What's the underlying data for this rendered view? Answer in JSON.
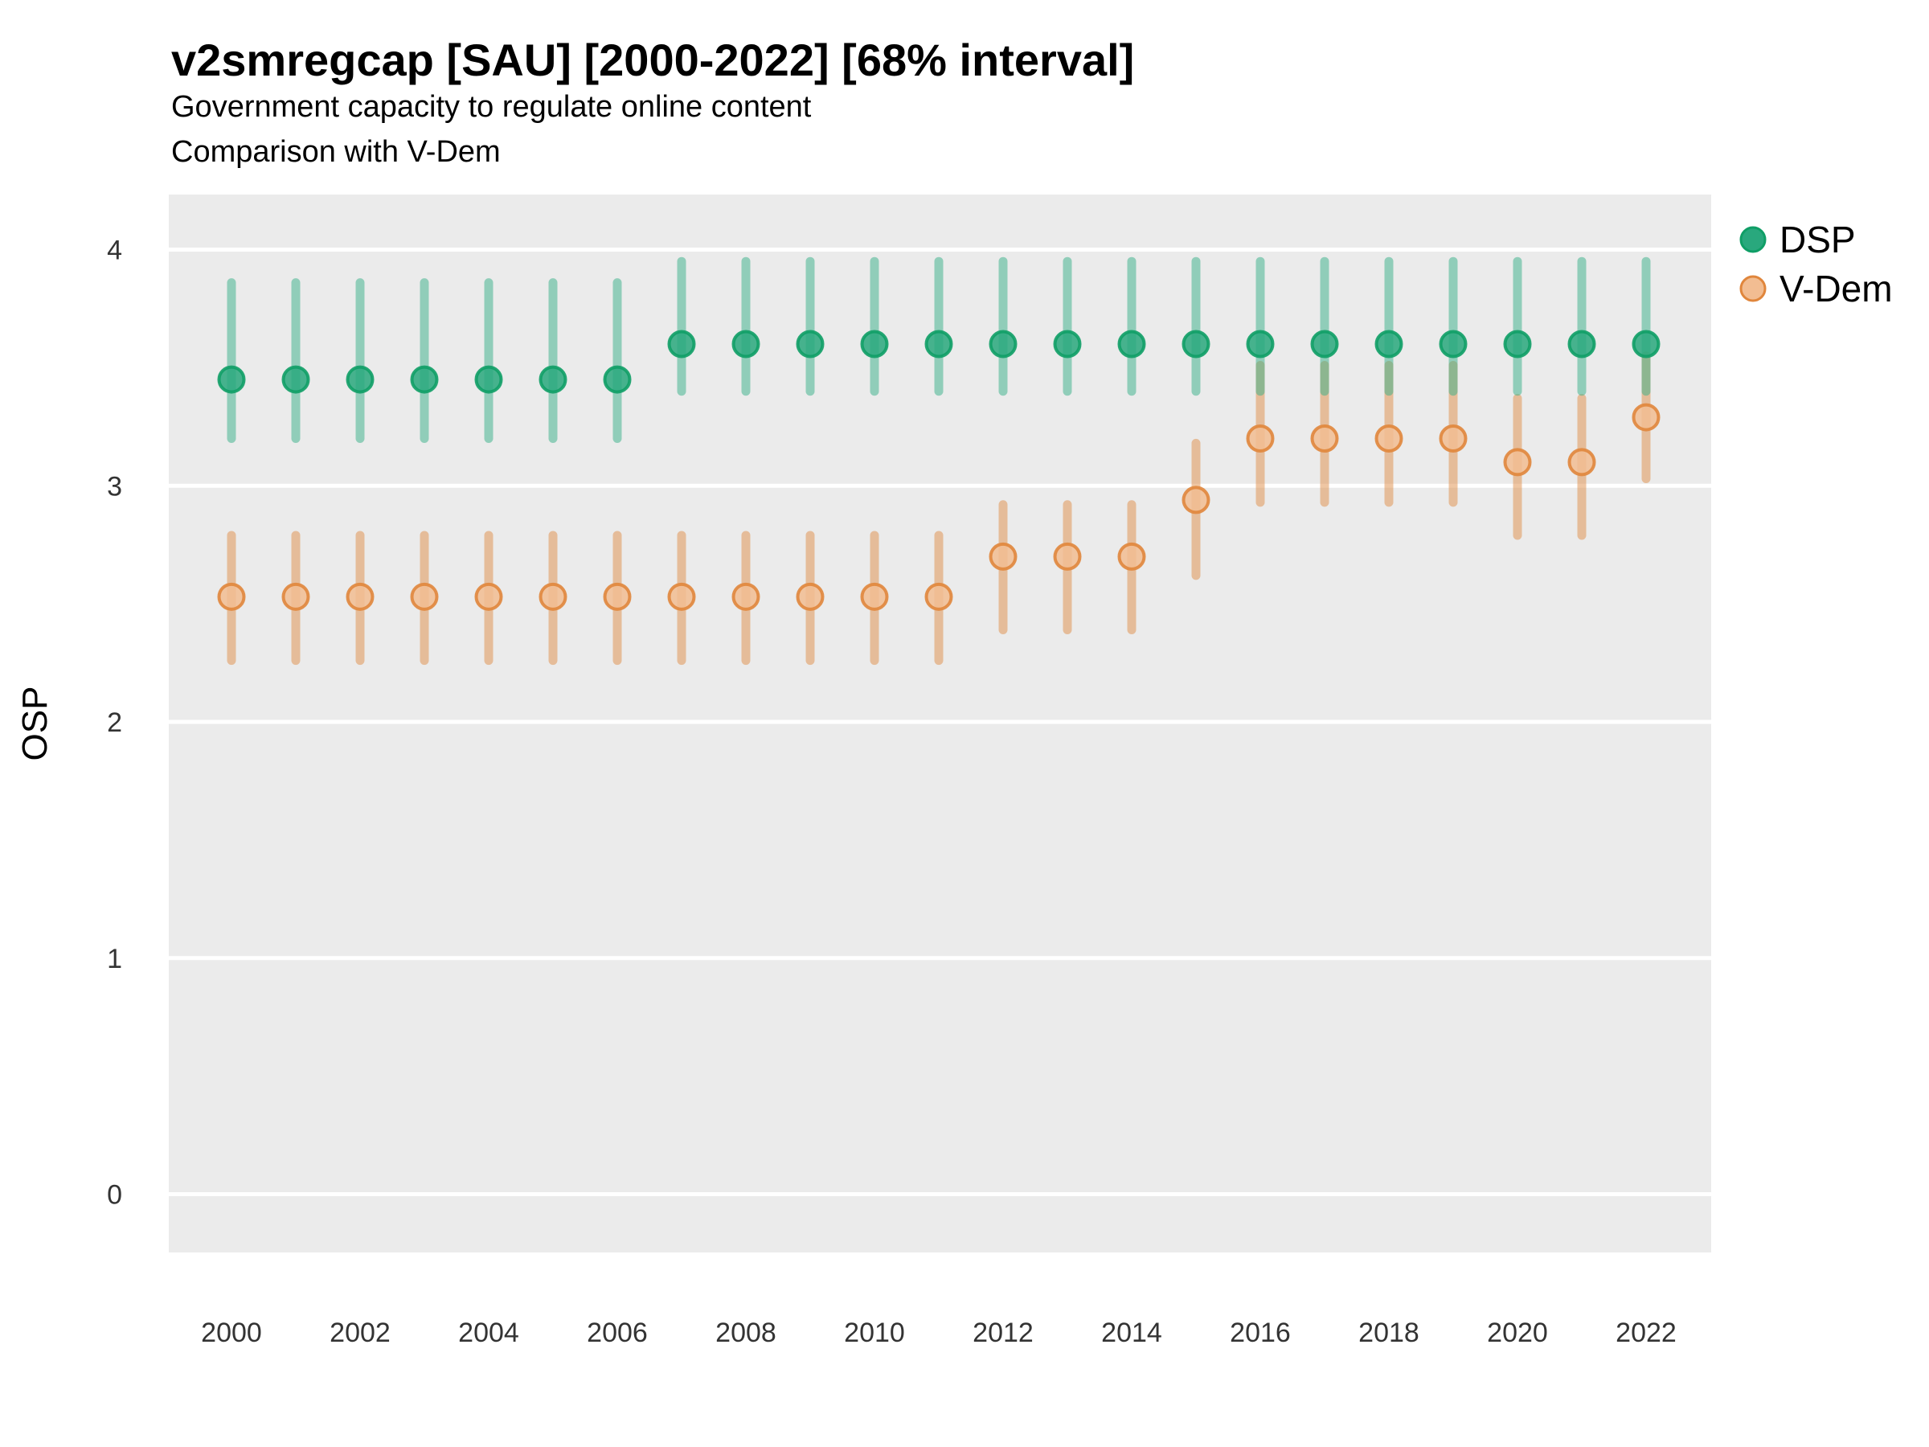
{
  "header": {
    "title": "v2smregcap [SAU] [2000-2022] [68% interval]",
    "subtitle1": "Government capacity to regulate online content",
    "subtitle2": "Comparison with V-Dem"
  },
  "colors": {
    "panel_bg": "#ebebeb",
    "gridline": "#ffffff",
    "axis_text": "#333333",
    "title_text": "#000000"
  },
  "chart_data": {
    "type": "pointrange",
    "title": "v2smregcap [SAU] [2000-2022] [68% interval]",
    "subtitle": "Government capacity to regulate online content",
    "subtitle2": "Comparison with V-Dem",
    "interval": "68% interval",
    "country": "SAU",
    "xlabel": "",
    "ylabel": "OSP",
    "ylim": [
      -0.25,
      4.23
    ],
    "y_ticks": [
      0,
      1,
      2,
      3,
      4
    ],
    "x_tick_labels": [
      "2000",
      "2002",
      "2004",
      "2006",
      "2008",
      "2010",
      "2012",
      "2014",
      "2016",
      "2018",
      "2020",
      "2022"
    ],
    "grid": "horizontal-major-white-on-gray",
    "legend_position": "right-top",
    "x": [
      2000,
      2001,
      2002,
      2003,
      2004,
      2005,
      2006,
      2007,
      2008,
      2009,
      2010,
      2011,
      2012,
      2013,
      2014,
      2015,
      2016,
      2017,
      2018,
      2019,
      2020,
      2021,
      2022
    ],
    "series": [
      {
        "name": "DSP",
        "point_fill": "#29a87d",
        "point_stroke": "#0f9e66",
        "bar_color": "#35b087",
        "est": [
          3.45,
          3.45,
          3.45,
          3.45,
          3.45,
          3.45,
          3.45,
          3.6,
          3.6,
          3.6,
          3.6,
          3.6,
          3.6,
          3.6,
          3.6,
          3.6,
          3.6,
          3.6,
          3.6,
          3.6,
          3.6,
          3.6,
          3.6
        ],
        "lo": [
          3.2,
          3.2,
          3.2,
          3.2,
          3.2,
          3.2,
          3.2,
          3.4,
          3.4,
          3.4,
          3.4,
          3.4,
          3.4,
          3.4,
          3.4,
          3.4,
          3.4,
          3.4,
          3.4,
          3.4,
          3.4,
          3.4,
          3.4
        ],
        "hi": [
          3.86,
          3.86,
          3.86,
          3.86,
          3.86,
          3.86,
          3.86,
          3.95,
          3.95,
          3.95,
          3.95,
          3.95,
          3.95,
          3.95,
          3.95,
          3.95,
          3.95,
          3.95,
          3.95,
          3.95,
          3.95,
          3.95,
          3.95
        ]
      },
      {
        "name": "V-Dem",
        "point_fill": "#f2bd92",
        "point_stroke": "#e0863c",
        "bar_color": "#e08e47",
        "est": [
          2.53,
          2.53,
          2.53,
          2.53,
          2.53,
          2.53,
          2.53,
          2.53,
          2.53,
          2.53,
          2.53,
          2.53,
          2.7,
          2.7,
          2.7,
          2.94,
          3.2,
          3.2,
          3.2,
          3.2,
          3.1,
          3.1,
          3.29
        ],
        "lo": [
          2.26,
          2.26,
          2.26,
          2.26,
          2.26,
          2.26,
          2.26,
          2.26,
          2.26,
          2.26,
          2.26,
          2.26,
          2.39,
          2.39,
          2.39,
          2.62,
          2.93,
          2.93,
          2.93,
          2.93,
          2.79,
          2.79,
          3.03
        ],
        "hi": [
          2.79,
          2.79,
          2.79,
          2.79,
          2.79,
          2.79,
          2.79,
          2.79,
          2.79,
          2.79,
          2.79,
          2.79,
          2.92,
          2.92,
          2.92,
          3.18,
          3.51,
          3.51,
          3.51,
          3.51,
          3.37,
          3.37,
          3.55
        ]
      }
    ]
  }
}
